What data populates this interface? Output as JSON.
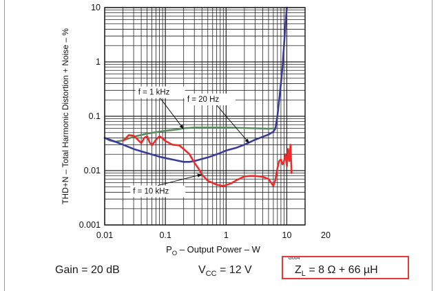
{
  "chart_data": {
    "type": "line",
    "xscale": "log",
    "yscale": "log",
    "xlim": [
      0.01,
      20
    ],
    "ylim": [
      0.001,
      10
    ],
    "grid": true,
    "xlabel_main": "P",
    "xlabel_sub": "O",
    "xlabel_rest": " – Output Power – W",
    "ylabel": "THD+N – Total Harmonic Distortion + Noise – %",
    "x_ticks": [
      {
        "value": 0.01,
        "label": "0.01"
      },
      {
        "value": 0.1,
        "label": "0.1"
      },
      {
        "value": 1,
        "label": "1"
      },
      {
        "value": 10,
        "label": "10"
      },
      {
        "value": 20,
        "label": "20"
      }
    ],
    "y_ticks": [
      {
        "value": 10,
        "label": "10"
      },
      {
        "value": 1,
        "label": "1"
      },
      {
        "value": 0.1,
        "label": "0.1"
      },
      {
        "value": 0.01,
        "label": "0.01"
      },
      {
        "value": 0.001,
        "label": "0.001"
      }
    ],
    "figure_code": "G004",
    "series": [
      {
        "name": "f = 1 kHz",
        "color": "#5a8a5e",
        "points": [
          [
            0.01,
            0.04
          ],
          [
            0.012,
            0.036
          ],
          [
            0.015,
            0.034
          ],
          [
            0.02,
            0.036
          ],
          [
            0.03,
            0.042
          ],
          [
            0.05,
            0.048
          ],
          [
            0.08,
            0.052
          ],
          [
            0.1,
            0.054
          ],
          [
            0.15,
            0.057
          ],
          [
            0.2,
            0.06
          ],
          [
            0.3,
            0.062
          ],
          [
            0.5,
            0.062
          ],
          [
            1,
            0.062
          ],
          [
            2,
            0.061
          ],
          [
            3,
            0.06
          ],
          [
            5,
            0.059
          ],
          [
            6.5,
            0.06
          ]
        ]
      },
      {
        "name": "f = 20 Hz",
        "color": "#3b3b9a",
        "points": [
          [
            0.01,
            0.04
          ],
          [
            0.015,
            0.034
          ],
          [
            0.02,
            0.03
          ],
          [
            0.03,
            0.025
          ],
          [
            0.05,
            0.021
          ],
          [
            0.08,
            0.018
          ],
          [
            0.1,
            0.017
          ],
          [
            0.15,
            0.0155
          ],
          [
            0.2,
            0.0145
          ],
          [
            0.25,
            0.0145
          ],
          [
            0.3,
            0.015
          ],
          [
            0.5,
            0.0175
          ],
          [
            0.8,
            0.021
          ],
          [
            1,
            0.0235
          ],
          [
            1.5,
            0.0265
          ],
          [
            2,
            0.03
          ],
          [
            3,
            0.037
          ],
          [
            5,
            0.046
          ],
          [
            6,
            0.052
          ],
          [
            6.5,
            0.06
          ],
          [
            7,
            0.1
          ],
          [
            7.5,
            0.2
          ],
          [
            8,
            0.4
          ],
          [
            8.5,
            0.8
          ],
          [
            9,
            2
          ],
          [
            9.5,
            5
          ],
          [
            10,
            10
          ]
        ]
      },
      {
        "name": "f = 10 kHz",
        "color": "#ee2a2a",
        "points": [
          [
            0.02,
            0.035
          ],
          [
            0.025,
            0.045
          ],
          [
            0.03,
            0.044
          ],
          [
            0.035,
            0.037
          ],
          [
            0.04,
            0.032
          ],
          [
            0.045,
            0.04
          ],
          [
            0.05,
            0.043
          ],
          [
            0.055,
            0.033
          ],
          [
            0.06,
            0.029
          ],
          [
            0.07,
            0.037
          ],
          [
            0.08,
            0.043
          ],
          [
            0.09,
            0.039
          ],
          [
            0.1,
            0.035
          ],
          [
            0.13,
            0.03
          ],
          [
            0.17,
            0.029
          ],
          [
            0.2,
            0.025
          ],
          [
            0.25,
            0.02
          ],
          [
            0.3,
            0.014
          ],
          [
            0.35,
            0.011
          ],
          [
            0.4,
            0.0085
          ],
          [
            0.5,
            0.0065
          ],
          [
            0.7,
            0.0055
          ],
          [
            0.9,
            0.0052
          ],
          [
            1.2,
            0.0058
          ],
          [
            1.5,
            0.0067
          ],
          [
            2,
            0.0078
          ],
          [
            2.5,
            0.008
          ],
          [
            3,
            0.008
          ],
          [
            4,
            0.0077
          ],
          [
            5,
            0.007
          ],
          [
            5.5,
            0.006
          ],
          [
            6,
            0.0052
          ],
          [
            6.5,
            0.0068
          ],
          [
            7,
            0.011
          ],
          [
            7.5,
            0.015
          ],
          [
            8,
            0.016
          ],
          [
            8.5,
            0.013
          ],
          [
            9,
            0.015
          ],
          [
            9.5,
            0.02
          ],
          [
            10,
            0.012
          ],
          [
            10.5,
            0.025
          ],
          [
            11,
            0.015
          ],
          [
            11.5,
            0.03
          ],
          [
            12,
            0.009
          ]
        ]
      }
    ],
    "annotations": [
      {
        "text": "f = 1 kHz",
        "target": [
          0.2,
          0.058
        ]
      },
      {
        "text": "f = 20 Hz",
        "target": [
          2.4,
          0.032
        ]
      },
      {
        "text": "f = 10 kHz",
        "target": [
          0.4,
          0.0085
        ]
      }
    ]
  },
  "conditions": {
    "gain": "Gain = 20 dB",
    "vcc_main": "V",
    "vcc_sub": "CC",
    "vcc_rest": " = 12 V",
    "zl_main": "Z",
    "zl_sub": "L",
    "zl_rest": " = 8 Ω + 66 µH"
  },
  "colors": {
    "highlight": "#e53935",
    "grid": "#222222"
  }
}
